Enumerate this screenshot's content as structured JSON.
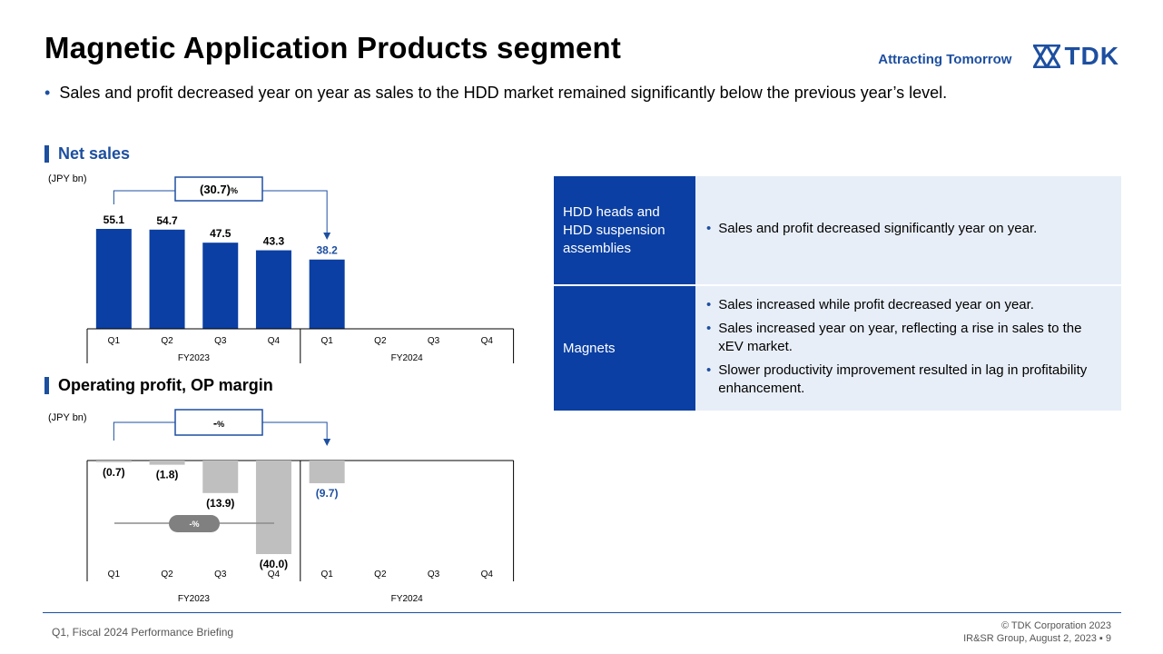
{
  "header": {
    "title": "Magnetic Application Products segment",
    "tagline": "Attracting Tomorrow",
    "logo_text": "TDK",
    "brand_color": "#1d4fa0"
  },
  "summary_bullet": "Sales and profit decreased year on year as sales to the HDD market remained significantly below the previous year’s level.",
  "sections": {
    "net_sales": "Net sales",
    "operating_profit": "Operating profit, OP margin"
  },
  "chart_data": [
    {
      "type": "bar",
      "unit_label": "(JPY bn)",
      "categories": [
        "Q1",
        "Q2",
        "Q3",
        "Q4",
        "Q1",
        "Q2",
        "Q3",
        "Q4"
      ],
      "groups": [
        "FY2023",
        "FY2024"
      ],
      "series": [
        {
          "values": [
            55.1,
            54.7,
            47.5,
            43.3,
            38.2,
            null,
            null,
            null
          ]
        }
      ],
      "data_labels": [
        "55.1",
        "54.7",
        "47.5",
        "43.3",
        "38.2"
      ],
      "yoy_change": {
        "value": "(30.7)",
        "unit": "%"
      },
      "ylim": [
        0,
        70
      ],
      "colors": {
        "bars": "#0b3fa3",
        "latest_label": "#1d4fa0"
      }
    },
    {
      "type": "bar",
      "unit_label": "(JPY bn)",
      "categories": [
        "Q1",
        "Q2",
        "Q3",
        "Q4",
        "Q1",
        "Q2",
        "Q3",
        "Q4"
      ],
      "groups": [
        "FY2023",
        "FY2024"
      ],
      "series": [
        {
          "values": [
            -0.7,
            -1.8,
            -13.9,
            -40.0,
            -9.7,
            null,
            null,
            null
          ]
        }
      ],
      "data_labels": [
        "(0.7)",
        "(1.8)",
        "(13.9)",
        "(40.0)",
        "(9.7)"
      ],
      "yoy_change": {
        "value": "-",
        "unit": "%"
      },
      "op_margin_label": "-%",
      "ylim": [
        -45,
        0
      ],
      "colors": {
        "bars": "#bfbfbf",
        "latest_label": "#1d4fa0",
        "margin_pill": "#808080"
      }
    }
  ],
  "segments_table": [
    {
      "name": "HDD heads and HDD suspension assemblies",
      "points": [
        "Sales and profit decreased significantly year on year."
      ]
    },
    {
      "name": "Magnets",
      "points": [
        "Sales increased while profit decreased year on year.",
        "Sales increased year on year, reflecting a rise in sales to the xEV market.",
        "Slower productivity improvement resulted in lag in profitability enhancement."
      ]
    }
  ],
  "footer": {
    "left": "Q1, Fiscal 2024 Performance Briefing",
    "copyright": "© TDK Corporation 2023",
    "group_date": "IR&SR Group, August 2, 2023",
    "page_number": "9"
  }
}
